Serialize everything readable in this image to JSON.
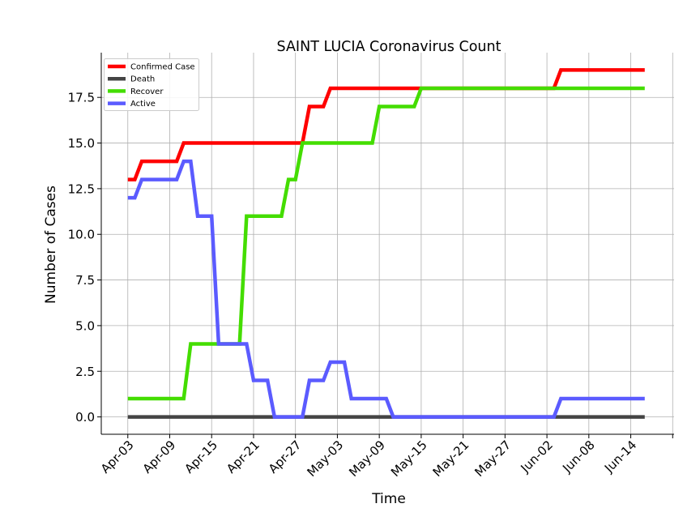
{
  "chart_data": {
    "type": "line",
    "title": "SAINT LUCIA Coronavirus Count",
    "xlabel": "Time",
    "ylabel": "Number of Cases",
    "grid": true,
    "legend_position": "top-left",
    "ylim": [
      -0.95,
      19.95
    ],
    "x_start_label": "Apr-03",
    "x_days_range": [
      -3.8,
      78.2
    ],
    "xticks": [
      {
        "day": 0,
        "label": "Apr-03"
      },
      {
        "day": 6,
        "label": "Apr-09"
      },
      {
        "day": 12,
        "label": "Apr-15"
      },
      {
        "day": 18,
        "label": "Apr-21"
      },
      {
        "day": 24,
        "label": "Apr-27"
      },
      {
        "day": 30,
        "label": "May-03"
      },
      {
        "day": 36,
        "label": "May-09"
      },
      {
        "day": 42,
        "label": "May-15"
      },
      {
        "day": 48,
        "label": "May-21"
      },
      {
        "day": 54,
        "label": "May-27"
      },
      {
        "day": 60,
        "label": "Jun-02"
      },
      {
        "day": 66,
        "label": "Jun-08"
      },
      {
        "day": 72,
        "label": "Jun-14"
      }
    ],
    "yticks": [
      {
        "value": 0,
        "label": "0.0"
      },
      {
        "value": 2.5,
        "label": "2.5"
      },
      {
        "value": 5,
        "label": "5.0"
      },
      {
        "value": 7.5,
        "label": "7.5"
      },
      {
        "value": 10,
        "label": "10.0"
      },
      {
        "value": 12.5,
        "label": "12.5"
      },
      {
        "value": 15,
        "label": "15.0"
      },
      {
        "value": 17.5,
        "label": "17.5"
      }
    ],
    "x_days": [
      0,
      1,
      2,
      3,
      4,
      5,
      6,
      7,
      8,
      9,
      10,
      11,
      12,
      13,
      14,
      15,
      16,
      17,
      18,
      19,
      20,
      21,
      22,
      23,
      24,
      25,
      26,
      27,
      28,
      29,
      30,
      31,
      32,
      33,
      34,
      35,
      36,
      37,
      38,
      39,
      40,
      41,
      42,
      43,
      44,
      45,
      46,
      47,
      48,
      49,
      50,
      51,
      52,
      53,
      54,
      55,
      56,
      57,
      58,
      59,
      60,
      61,
      62,
      63,
      64,
      65,
      66,
      67,
      68,
      69,
      70,
      71,
      72,
      73,
      74
    ],
    "series": [
      {
        "name": "Confirmed Case",
        "color": "#ff0000",
        "values": [
          13,
          13,
          14,
          14,
          14,
          14,
          14,
          14,
          15,
          15,
          15,
          15,
          15,
          15,
          15,
          15,
          15,
          15,
          15,
          15,
          15,
          15,
          15,
          15,
          15,
          15,
          17,
          17,
          17,
          18,
          18,
          18,
          18,
          18,
          18,
          18,
          18,
          18,
          18,
          18,
          18,
          18,
          18,
          18,
          18,
          18,
          18,
          18,
          18,
          18,
          18,
          18,
          18,
          18,
          18,
          18,
          18,
          18,
          18,
          18,
          18,
          18,
          19,
          19,
          19,
          19,
          19,
          19,
          19,
          19,
          19,
          19,
          19,
          19,
          19
        ]
      },
      {
        "name": "Death",
        "color": "#444444",
        "values": [
          0,
          0,
          0,
          0,
          0,
          0,
          0,
          0,
          0,
          0,
          0,
          0,
          0,
          0,
          0,
          0,
          0,
          0,
          0,
          0,
          0,
          0,
          0,
          0,
          0,
          0,
          0,
          0,
          0,
          0,
          0,
          0,
          0,
          0,
          0,
          0,
          0,
          0,
          0,
          0,
          0,
          0,
          0,
          0,
          0,
          0,
          0,
          0,
          0,
          0,
          0,
          0,
          0,
          0,
          0,
          0,
          0,
          0,
          0,
          0,
          0,
          0,
          0,
          0,
          0,
          0,
          0,
          0,
          0,
          0,
          0,
          0,
          0,
          0,
          0
        ]
      },
      {
        "name": "Recover",
        "color": "#44dd00",
        "values": [
          1,
          1,
          1,
          1,
          1,
          1,
          1,
          1,
          1,
          4,
          4,
          4,
          4,
          4,
          4,
          4,
          4,
          11,
          11,
          11,
          11,
          11,
          11,
          13,
          13,
          15,
          15,
          15,
          15,
          15,
          15,
          15,
          15,
          15,
          15,
          15,
          17,
          17,
          17,
          17,
          17,
          17,
          18,
          18,
          18,
          18,
          18,
          18,
          18,
          18,
          18,
          18,
          18,
          18,
          18,
          18,
          18,
          18,
          18,
          18,
          18,
          18,
          18,
          18,
          18,
          18,
          18,
          18,
          18,
          18,
          18,
          18,
          18,
          18,
          18
        ]
      },
      {
        "name": "Active",
        "color": "#5b5bff",
        "values": [
          12,
          12,
          13,
          13,
          13,
          13,
          13,
          13,
          14,
          14,
          11,
          11,
          11,
          4,
          4,
          4,
          4,
          4,
          2,
          2,
          2,
          0,
          0,
          0,
          0,
          0,
          2,
          2,
          2,
          3,
          3,
          3,
          1,
          1,
          1,
          1,
          1,
          1,
          0,
          0,
          0,
          0,
          0,
          0,
          0,
          0,
          0,
          0,
          0,
          0,
          0,
          0,
          0,
          0,
          0,
          0,
          0,
          0,
          0,
          0,
          0,
          0,
          1,
          1,
          1,
          1,
          1,
          1,
          1,
          1,
          1,
          1,
          1,
          1,
          1
        ]
      }
    ]
  }
}
